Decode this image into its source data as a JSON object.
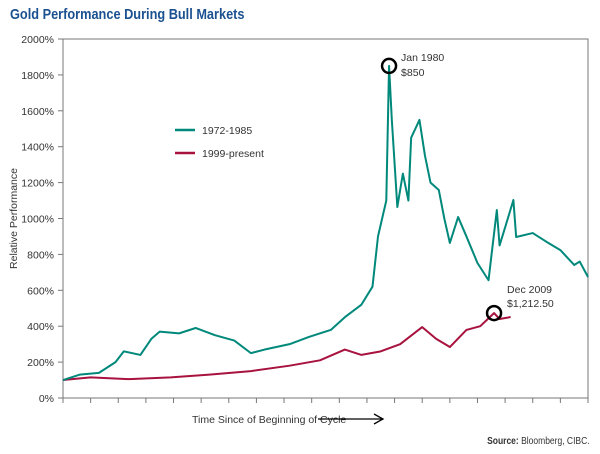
{
  "title": "Gold Performance During Bull Markets",
  "source": {
    "label": "Source:",
    "text": "Bloomberg, CIBC."
  },
  "chart_data": {
    "type": "line",
    "title": "Gold Performance During Bull Markets",
    "xlabel": "Time Since of Beginning of Cycle",
    "ylabel": "Relative Performance",
    "ylim": [
      0,
      2000
    ],
    "xlim": [
      0,
      19
    ],
    "yticks": [
      0,
      200,
      400,
      600,
      800,
      1000,
      1200,
      1400,
      1600,
      1800,
      2000
    ],
    "ytick_labels": [
      "0%",
      "200%",
      "400%",
      "600%",
      "800%",
      "1000%",
      "1200%",
      "1400%",
      "1600%",
      "1800%",
      "2000%"
    ],
    "xticks_count": 19,
    "grid": false,
    "legend_placement": "upper-left",
    "series": [
      {
        "name": "1972-1985",
        "color": "#00897b",
        "x": [
          0,
          0.6,
          1.3,
          1.9,
          2.2,
          2.8,
          3.2,
          3.5,
          4.2,
          4.8,
          5.5,
          6.2,
          6.8,
          7.3,
          8.2,
          8.9,
          9.7,
          10.2,
          10.8,
          11.2,
          11.4,
          11.7,
          11.8,
          11.9,
          12.1,
          12.3,
          12.5,
          12.6,
          12.9,
          13.1,
          13.3,
          13.6,
          13.8,
          14.0,
          14.3,
          14.6,
          15.0,
          15.4,
          15.7,
          15.8,
          16.0,
          16.3,
          16.4,
          17.0,
          17.5,
          18.0,
          18.5,
          18.7,
          19.0
        ],
        "y": [
          100,
          130,
          140,
          200,
          260,
          240,
          330,
          370,
          360,
          390,
          350,
          320,
          250,
          270,
          300,
          340,
          380,
          450,
          520,
          620,
          900,
          1100,
          1850,
          1550,
          1064,
          1250,
          1100,
          1450,
          1549,
          1350,
          1200,
          1159,
          1000,
          864,
          1008,
          900,
          752,
          656,
          1047,
          850,
          950,
          1103,
          897,
          919,
          870,
          824,
          741,
          760,
          674
        ]
      },
      {
        "name": "1999-present",
        "color": "#a8123e",
        "x": [
          0,
          1.0,
          2.4,
          3.9,
          5.3,
          6.8,
          8.2,
          9.3,
          10.2,
          10.8,
          11.5,
          12.2,
          13.0,
          13.5,
          14.0,
          14.6,
          15.1,
          15.6,
          15.8,
          16.2
        ],
        "y": [
          100,
          115,
          105,
          115,
          130,
          150,
          180,
          210,
          270,
          240,
          260,
          300,
          395,
          330,
          284,
          379,
          400,
          473,
          440,
          451
        ]
      }
    ],
    "annotations": [
      {
        "series": 0,
        "x": 11.8,
        "y": 1850,
        "lines": [
          "Jan 1980",
          "$850"
        ]
      },
      {
        "series": 1,
        "x": 15.6,
        "y": 473,
        "lines": [
          "Dec 2009",
          "$1,212.50"
        ]
      }
    ]
  }
}
